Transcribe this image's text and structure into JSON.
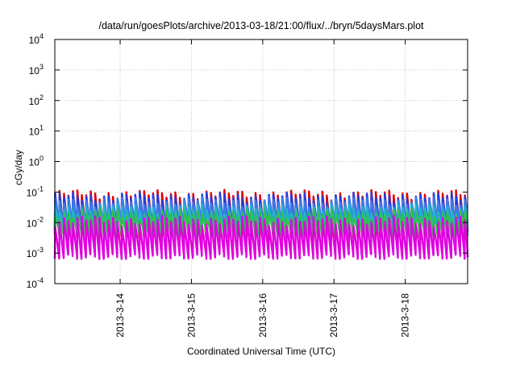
{
  "chart_data": {
    "type": "line",
    "title": "/data/run/goesPlots/archive/2013-03-18/21:00/flux/../bryn/5daysMars.plot",
    "xlabel": "Coordinated Universal Time (UTC)",
    "ylabel": "cGy/day",
    "yscale": "log",
    "ylim": [
      0.0001,
      10000
    ],
    "xlim": [
      "2013-03-13 02:00",
      "2013-03-18 21:00"
    ],
    "y_ticks": [
      {
        "base": "10",
        "exp": "-4"
      },
      {
        "base": "10",
        "exp": "-3"
      },
      {
        "base": "10",
        "exp": "-2"
      },
      {
        "base": "10",
        "exp": "-1"
      },
      {
        "base": "10",
        "exp": "0"
      },
      {
        "base": "10",
        "exp": "1"
      },
      {
        "base": "10",
        "exp": "2"
      },
      {
        "base": "10",
        "exp": "3"
      },
      {
        "base": "10",
        "exp": "4"
      }
    ],
    "x_ticks": [
      {
        "label": "2013-3-14",
        "date": "2013-03-14 00:00"
      },
      {
        "label": "2013-3-15",
        "date": "2013-03-15 00:00"
      },
      {
        "label": "2013-3-16",
        "date": "2013-03-16 00:00"
      },
      {
        "label": "2013-3-17",
        "date": "2013-03-17 00:00"
      },
      {
        "label": "2013-3-18",
        "date": "2013-03-18 00:00"
      }
    ],
    "grid": true,
    "sawtooth_period_hours": 1.5,
    "series": [
      {
        "color": "#e00000",
        "peak": 0.085,
        "trough": 0.004
      },
      {
        "color": "#2b3bd8",
        "peak": 0.07,
        "trough": 0.006
      },
      {
        "color": "#3a7be8",
        "peak": 0.05,
        "trough": 0.008
      },
      {
        "color": "#20b5c8",
        "peak": 0.03,
        "trough": 0.005
      },
      {
        "color": "#30c050",
        "peak": 0.02,
        "trough": 0.004
      },
      {
        "color": "#e000e0",
        "peak": 0.012,
        "trough": 0.0008
      }
    ]
  }
}
